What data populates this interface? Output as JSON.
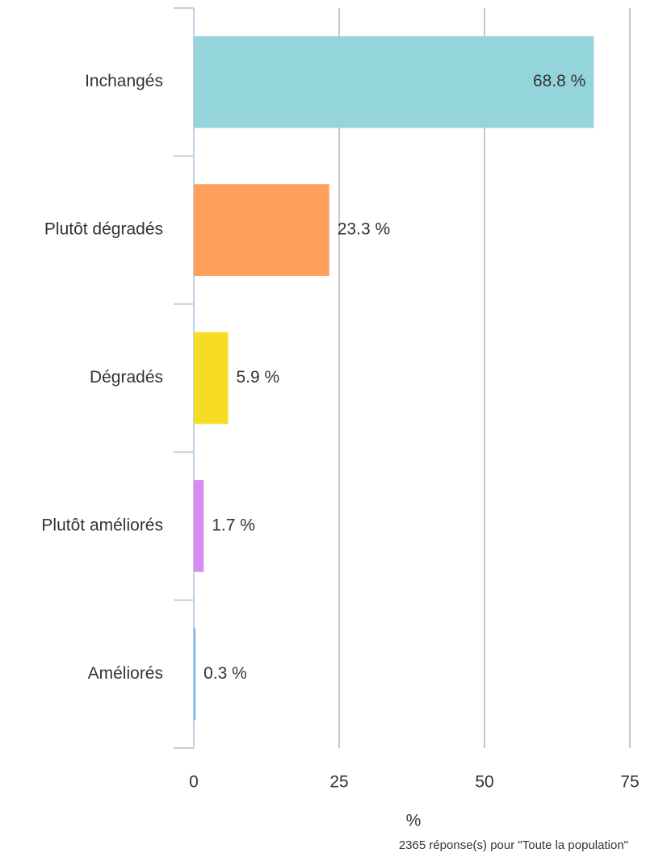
{
  "chart_data": {
    "type": "bar",
    "orientation": "horizontal",
    "categories": [
      "Inchangés",
      "Plutôt dégradés",
      "Dégradés",
      "Plutôt améliorés",
      "Améliorés"
    ],
    "values": [
      68.8,
      23.3,
      5.9,
      1.7,
      0.3
    ],
    "value_labels": [
      "68.8 %",
      "23.3 %",
      "5.9 %",
      "1.7 %",
      "0.3 %"
    ],
    "colors": [
      "#94d5db",
      "#ffa05a",
      "#f7dc24",
      "#d88cf3",
      "#7cb5ec"
    ],
    "xlim": [
      0,
      75
    ],
    "xticks": [
      0,
      25,
      50,
      75
    ],
    "grid": true,
    "xlabel": "%",
    "footnote": "2365 réponse(s) pour \"Toute la population\""
  }
}
